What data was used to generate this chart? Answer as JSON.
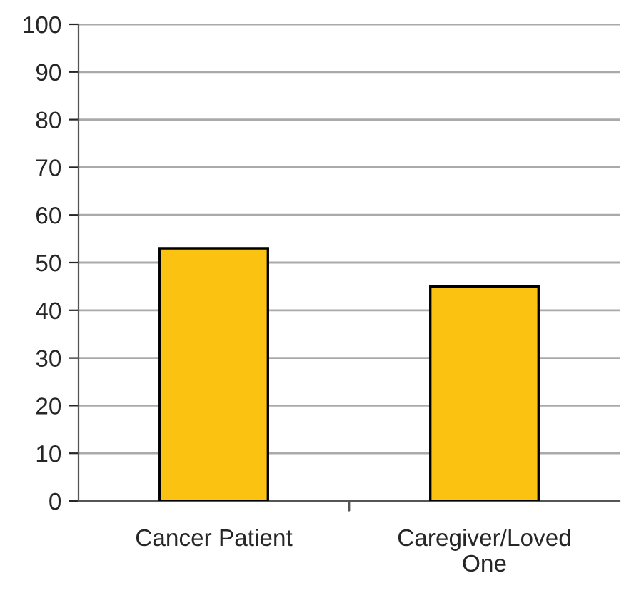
{
  "chart_data": {
    "type": "bar",
    "categories": [
      "Cancer Patient",
      "Caregiver/Loved\nOne"
    ],
    "values": [
      53,
      45
    ],
    "color": "#fbc212",
    "ylim": [
      0,
      100
    ],
    "yticks": [
      0,
      10,
      20,
      30,
      40,
      50,
      60,
      70,
      80,
      90,
      100
    ],
    "grid": "y"
  }
}
